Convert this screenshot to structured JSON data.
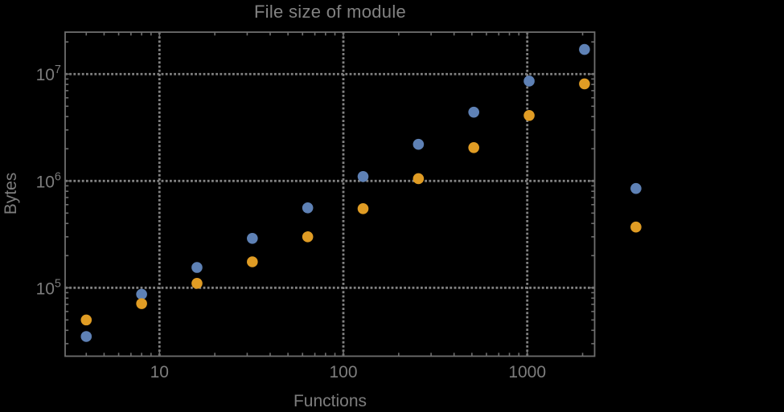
{
  "window": {
    "background": "#000000"
  },
  "chart_data": {
    "type": "scatter",
    "title": "File size of module",
    "xlabel": "Functions",
    "ylabel": "Bytes",
    "x_scale": "log10",
    "y_scale": "log10",
    "xlim": [
      3.07,
      2325
    ],
    "ylim": [
      22900,
      24700000
    ],
    "grid": {
      "style": "dotted",
      "color": "#828282",
      "x_values": [
        10,
        100,
        1000
      ],
      "y_values": [
        100000,
        1000000,
        10000000
      ]
    },
    "x_ticks": {
      "major": [
        10,
        100,
        1000
      ],
      "labels": [
        "10",
        "100",
        "1000"
      ]
    },
    "y_ticks": {
      "major": [
        100000,
        1000000,
        10000000
      ],
      "labels": [
        {
          "base": "10",
          "exp": "5"
        },
        {
          "base": "10",
          "exp": "6"
        },
        {
          "base": "10",
          "exp": "7"
        }
      ]
    },
    "x": [
      4,
      8,
      16,
      32,
      64,
      128,
      256,
      512,
      1024,
      2048,
      3900
    ],
    "series": [
      {
        "name": "series-1-blue",
        "color": "#5E81B5",
        "values": [
          35000,
          87000,
          155000,
          290000,
          560000,
          1100000,
          2200000,
          4400000,
          8600000,
          17000000,
          850000
        ]
      },
      {
        "name": "series-2-orange",
        "color": "#E09C24",
        "values": [
          50000,
          71000,
          110000,
          175000,
          300000,
          550000,
          1050000,
          2050000,
          4100000,
          8100000,
          370000
        ]
      }
    ],
    "marker": {
      "shape": "circle",
      "radius": 6.8
    },
    "legend": "none"
  },
  "style": {
    "frame_color": "#6e6e6e",
    "tick_color": "#6e6e6e",
    "text_color": "#7d7d7d",
    "tick_font_size": 21,
    "sup_font_size": 14.5
  }
}
